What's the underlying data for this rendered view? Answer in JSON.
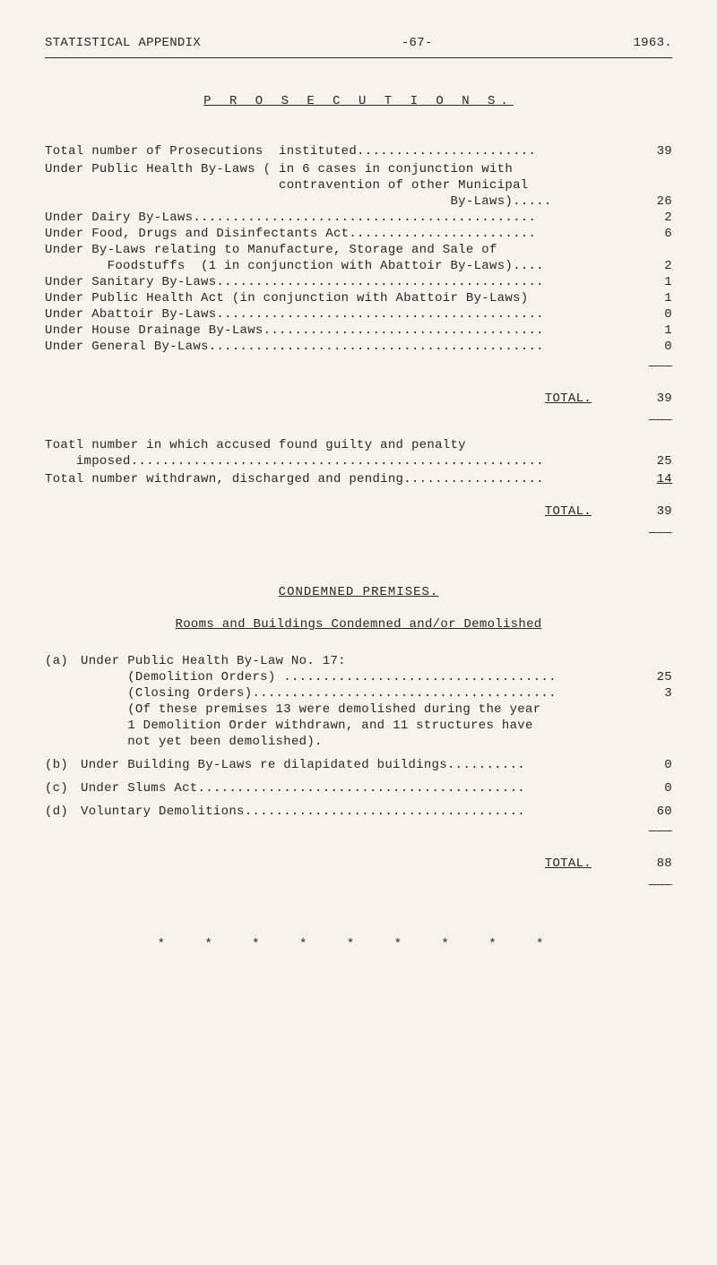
{
  "header": {
    "left": "STATISTICAL APPENDIX",
    "center": "-67-",
    "right": "1963."
  },
  "title": "P R O S E C U T I O N S.",
  "section1": {
    "rows": [
      {
        "text": "Total number of Prosecutions  instituted.......................",
        "value": "39"
      },
      {
        "text": "",
        "value": ""
      },
      {
        "text": "Under Public Health By-Laws ( in 6 cases in conjunction with",
        "value": ""
      },
      {
        "text": "                              contravention of other Municipal",
        "value": ""
      },
      {
        "text": "                                                    By-Laws).....",
        "value": "26"
      },
      {
        "text": "Under Dairy By-Laws............................................",
        "value": "2"
      },
      {
        "text": "Under Food, Drugs and Disinfectants Act........................",
        "value": "6"
      },
      {
        "text": "Under By-Laws relating to Manufacture, Storage and Sale of",
        "value": ""
      },
      {
        "text": "        Foodstuffs  (1 in conjunction with Abattoir By-Laws)....",
        "value": "2"
      },
      {
        "text": "Under Sanitary By-Laws..........................................",
        "value": "1"
      },
      {
        "text": "Under Public Health Act (in conjunction with Abattoir By-Laws)",
        "value": "1"
      },
      {
        "text": "Under Abattoir By-Laws..........................................",
        "value": "0"
      },
      {
        "text": "Under House Drainage By-Laws....................................",
        "value": "1"
      },
      {
        "text": "Under General By-Laws...........................................",
        "value": "0"
      }
    ],
    "total_label": "TOTAL.",
    "total_value": "39"
  },
  "section2": {
    "rows": [
      {
        "text": "Toatl number in which accused found guilty and penalty",
        "value": ""
      },
      {
        "text": "    imposed.....................................................",
        "value": "25"
      },
      {
        "text": "",
        "value": ""
      },
      {
        "text": "Total number withdrawn, discharged and pending..................",
        "value": "14",
        "underline": true
      }
    ],
    "total_label": "TOTAL.",
    "total_value": "39"
  },
  "subheading1": "CONDEMNED  PREMISES.",
  "subheading2": "Rooms and Buildings Condemned and/or Demolished",
  "section3": {
    "items": [
      {
        "label": "(a)",
        "lines": [
          {
            "text": "Under Public Health By-Law No. 17:",
            "value": ""
          },
          {
            "text": "      (Demolition Orders) ...................................",
            "value": "25"
          },
          {
            "text": "      (Closing Orders).......................................",
            "value": "3"
          },
          {
            "text": "      (Of these premises 13 were demolished during the year",
            "value": ""
          },
          {
            "text": "      1 Demolition Order withdrawn, and 11 structures have",
            "value": ""
          },
          {
            "text": "      not yet been demolished).",
            "value": ""
          }
        ]
      },
      {
        "label": "(b)",
        "lines": [
          {
            "text": "Under Building By-Laws re dilapidated buildings..........",
            "value": "0"
          }
        ]
      },
      {
        "label": "(c)",
        "lines": [
          {
            "text": "Under Slums Act..........................................",
            "value": "0"
          }
        ]
      },
      {
        "label": "(d)",
        "lines": [
          {
            "text": "Voluntary Demolitions....................................",
            "value": "60"
          }
        ]
      }
    ],
    "total_label": "TOTAL.",
    "total_value": "88"
  },
  "asterisks": "* * * * * * * * *"
}
